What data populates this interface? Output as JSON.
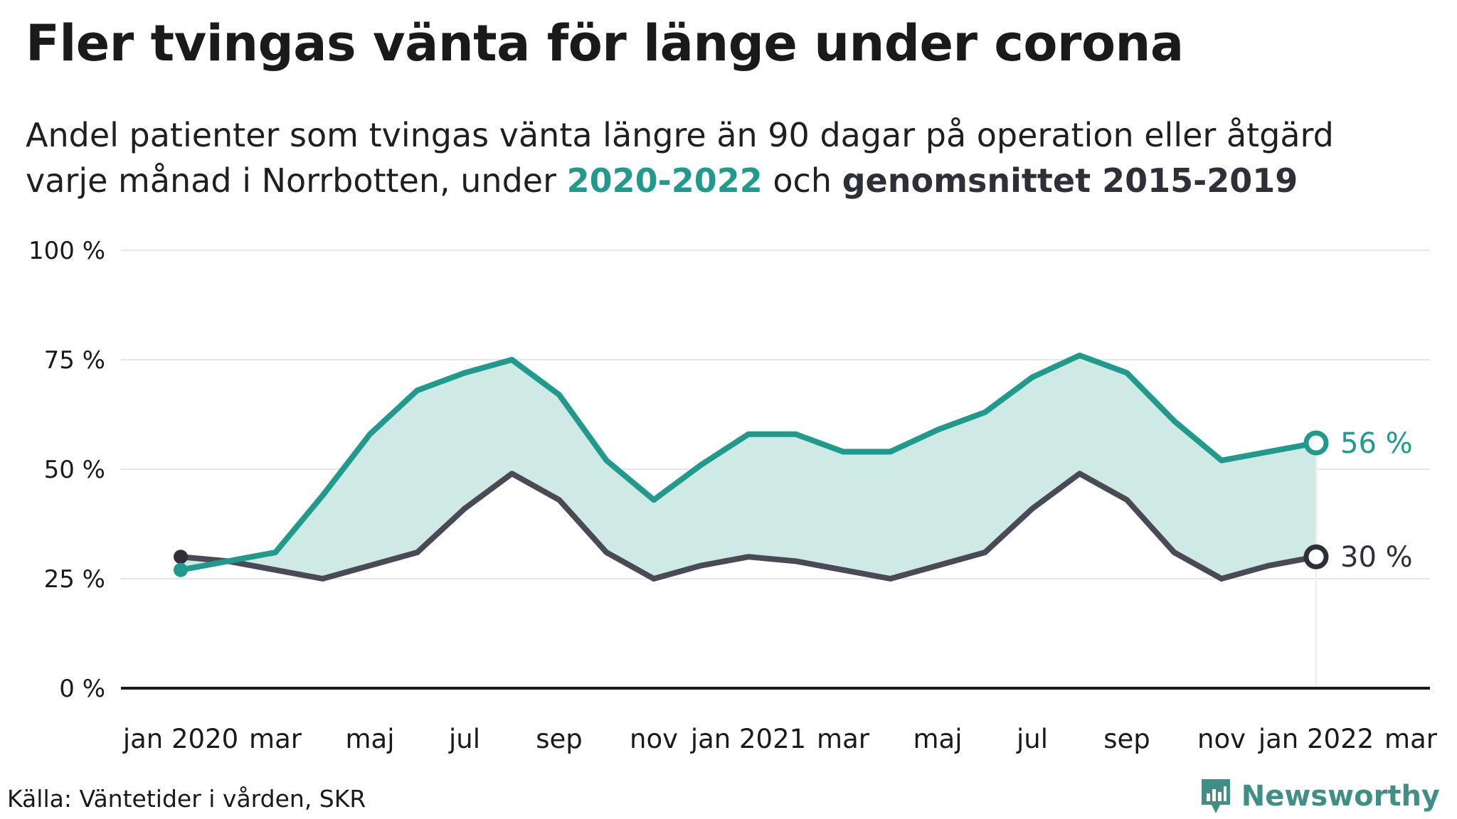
{
  "header": {
    "title": "Fler tvingas vänta för länge under corona",
    "subtitle_line1": "Andel patienter som tvingas vänta längre än 90 dagar på operation eller åtgärd",
    "subtitle_line2_pre": "varje månad i Norrbotten, under ",
    "subtitle_highlight_green": "2020-2022",
    "subtitle_mid": " och ",
    "subtitle_highlight_dark": "genomsnittet 2015-2019"
  },
  "footer": {
    "source": "Källa: Väntetider i vården, SKR",
    "brand": "Newsworthy"
  },
  "colors": {
    "green": "#1f9a8c",
    "dark": "#4a4a56",
    "fill": "#cfe9e5",
    "grid": "#e6e6e6",
    "axis": "#1a1a1a"
  },
  "chart_data": {
    "type": "line",
    "ylim": [
      0,
      100
    ],
    "y_ticks": [
      0,
      25,
      50,
      75,
      100
    ],
    "y_tick_labels": [
      "0 %",
      "25 %",
      "50 %",
      "75 %",
      "100 %"
    ],
    "x_tick_labels": [
      "jan 2020",
      "mar",
      "maj",
      "jul",
      "sep",
      "nov",
      "jan 2021",
      "mar",
      "maj",
      "jul",
      "sep",
      "nov",
      "jan 2022",
      "mar"
    ],
    "x": [
      "2020-01",
      "2020-02",
      "2020-03",
      "2020-04",
      "2020-05",
      "2020-06",
      "2020-07",
      "2020-08",
      "2020-09",
      "2020-10",
      "2020-11",
      "2020-12",
      "2021-01",
      "2021-02",
      "2021-03",
      "2021-04",
      "2021-05",
      "2021-06",
      "2021-07",
      "2021-08",
      "2021-09",
      "2021-10",
      "2021-11",
      "2021-12",
      "2022-01"
    ],
    "series": [
      {
        "name": "2020-2022",
        "values": [
          27,
          29,
          31,
          44,
          58,
          68,
          72,
          75,
          67,
          52,
          43,
          51,
          58,
          58,
          54,
          54,
          59,
          63,
          71,
          76,
          72,
          61,
          52,
          54,
          56
        ],
        "end_label": "56 %"
      },
      {
        "name": "genomsnittet 2015-2019",
        "values": [
          30,
          29,
          27,
          25,
          28,
          31,
          41,
          49,
          43,
          31,
          25,
          28,
          30,
          29,
          27,
          25,
          28,
          31,
          41,
          49,
          43,
          31,
          25,
          28,
          30
        ],
        "end_label": "30 %"
      }
    ]
  }
}
